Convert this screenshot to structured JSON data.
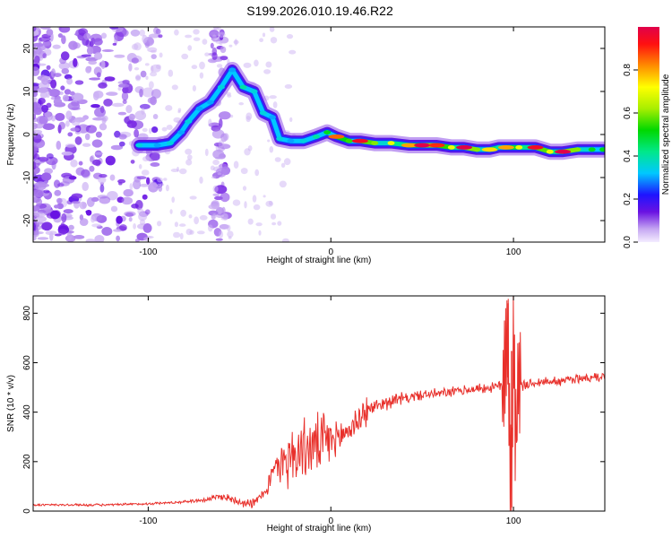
{
  "title": "S199.2026.010.19.46.R22",
  "chart_data": [
    {
      "type": "heatmap",
      "xlabel": "Height of straight line (km)",
      "ylabel": "Frequency (Hz)",
      "xlim": [
        -163,
        150
      ],
      "ylim": [
        -25,
        25
      ],
      "xticks": [
        -100,
        0,
        100
      ],
      "xtick_labels": [
        "-100",
        "0",
        "100"
      ],
      "yticks": [
        -20,
        -10,
        0,
        10,
        20
      ],
      "ytick_labels": [
        "-20",
        "-10",
        "0",
        "10",
        "20"
      ],
      "ridge": [
        {
          "x": -105,
          "y": -2.5,
          "a": 0.35
        },
        {
          "x": -95,
          "y": -2.5,
          "a": 0.3
        },
        {
          "x": -88,
          "y": -2.0,
          "a": 0.35
        },
        {
          "x": -82,
          "y": 0.5,
          "a": 0.3
        },
        {
          "x": -78,
          "y": 3.0,
          "a": 0.35
        },
        {
          "x": -72,
          "y": 6.0,
          "a": 0.3
        },
        {
          "x": -66,
          "y": 7.5,
          "a": 0.3
        },
        {
          "x": -60,
          "y": 11.0,
          "a": 0.35
        },
        {
          "x": -54,
          "y": 15.0,
          "a": 0.3
        },
        {
          "x": -48,
          "y": 11.0,
          "a": 0.4
        },
        {
          "x": -42,
          "y": 10.0,
          "a": 0.35
        },
        {
          "x": -37,
          "y": 5.0,
          "a": 0.35
        },
        {
          "x": -32,
          "y": 4.0,
          "a": 0.3
        },
        {
          "x": -28,
          "y": -1.0,
          "a": 0.35
        },
        {
          "x": -22,
          "y": -1.5,
          "a": 0.3
        },
        {
          "x": -15,
          "y": -1.5,
          "a": 0.35
        },
        {
          "x": -8,
          "y": -0.5,
          "a": 0.4
        },
        {
          "x": -2,
          "y": 0.5,
          "a": 0.5
        },
        {
          "x": 3,
          "y": -0.5,
          "a": 0.85
        },
        {
          "x": 10,
          "y": -1.5,
          "a": 0.55
        },
        {
          "x": 16,
          "y": -1.5,
          "a": 0.95
        },
        {
          "x": 24,
          "y": -2.0,
          "a": 0.6
        },
        {
          "x": 33,
          "y": -2.0,
          "a": 0.7
        },
        {
          "x": 43,
          "y": -2.5,
          "a": 0.8
        },
        {
          "x": 50,
          "y": -2.5,
          "a": 1.0
        },
        {
          "x": 58,
          "y": -2.5,
          "a": 0.9
        },
        {
          "x": 66,
          "y": -3.0,
          "a": 0.7
        },
        {
          "x": 73,
          "y": -3.0,
          "a": 1.0
        },
        {
          "x": 80,
          "y": -3.5,
          "a": 0.6
        },
        {
          "x": 87,
          "y": -3.5,
          "a": 0.75
        },
        {
          "x": 92,
          "y": -3.0,
          "a": 0.4
        },
        {
          "x": 96,
          "y": -3.0,
          "a": 0.8
        },
        {
          "x": 103,
          "y": -3.0,
          "a": 0.7
        },
        {
          "x": 112,
          "y": -3.0,
          "a": 0.95
        },
        {
          "x": 120,
          "y": -4.0,
          "a": 0.7
        },
        {
          "x": 127,
          "y": -4.0,
          "a": 1.0
        },
        {
          "x": 135,
          "y": -3.5,
          "a": 0.6
        },
        {
          "x": 143,
          "y": -3.5,
          "a": 0.5
        },
        {
          "x": 149,
          "y": -3.5,
          "a": 0.5
        }
      ],
      "colorbar": {
        "label": "Normalized spectral amplitude",
        "range": [
          0,
          1
        ],
        "ticks": [
          0.0,
          0.2,
          0.4,
          0.6,
          0.8
        ],
        "tick_labels": [
          "0.0",
          "0.2",
          "0.4",
          "0.6",
          "0.8"
        ]
      }
    },
    {
      "type": "line",
      "xlabel": "Height of straight line (km)",
      "ylabel": "SNR (10 * v/v)",
      "xlim": [
        -163,
        150
      ],
      "ylim": [
        0,
        870
      ],
      "xticks": [
        -100,
        0,
        100
      ],
      "xtick_labels": [
        "-100",
        "0",
        "100"
      ],
      "yticks": [
        0,
        200,
        400,
        600,
        800
      ],
      "ytick_labels": [
        "0",
        "200",
        "400",
        "600",
        "800"
      ],
      "series": [
        {
          "name": "SNR",
          "color": "#e8302b",
          "x": [
            -163,
            -140,
            -120,
            -100,
            -85,
            -70,
            -60,
            -50,
            -42,
            -36,
            -30,
            -25,
            -20,
            -15,
            -10,
            -5,
            0,
            5,
            10,
            15,
            20,
            25,
            30,
            40,
            50,
            60,
            70,
            80,
            90,
            95,
            97,
            98,
            99,
            100,
            101,
            102,
            104,
            110,
            120,
            130,
            140,
            150
          ],
          "y": [
            25,
            25,
            25,
            30,
            35,
            45,
            60,
            40,
            30,
            80,
            180,
            210,
            230,
            250,
            260,
            270,
            285,
            300,
            330,
            370,
            410,
            425,
            440,
            455,
            470,
            475,
            485,
            495,
            500,
            515,
            780,
            200,
            20,
            840,
            300,
            520,
            500,
            520,
            525,
            530,
            540,
            545
          ]
        }
      ],
      "annotations": [
        {
          "x": 97,
          "y": 840
        },
        {
          "x": 99,
          "y": 15
        }
      ]
    }
  ]
}
